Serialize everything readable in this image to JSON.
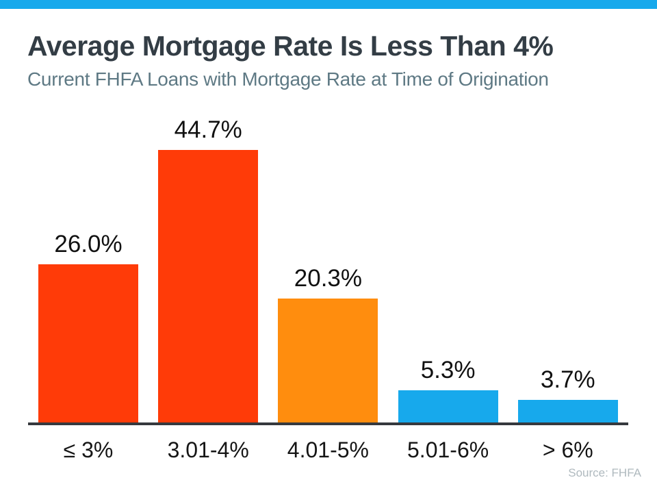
{
  "page": {
    "accent_color": "#17A9EC",
    "background_color": "#ffffff"
  },
  "chart_data": {
    "type": "bar",
    "title": "Average Mortgage Rate Is Less Than 4%",
    "subtitle": "Current FHFA Loans with Mortgage Rate at Time of Origination",
    "categories": [
      "≤ 3%",
      "3.01-4%",
      "4.01-5%",
      "5.01-6%",
      "> 6%"
    ],
    "values": [
      26.0,
      44.7,
      20.3,
      5.3,
      3.7
    ],
    "value_labels": [
      "26.0%",
      "44.7%",
      "20.3%",
      "5.3%",
      "3.7%"
    ],
    "unit": "%",
    "bar_colors": [
      "#FF3B08",
      "#FF3B08",
      "#FF8D0E",
      "#17A9EC",
      "#17A9EC"
    ],
    "axis_line_color": "#36393E",
    "ylim": [
      0,
      50
    ],
    "grid": false,
    "legend": false,
    "source": "Source: FHFA"
  }
}
